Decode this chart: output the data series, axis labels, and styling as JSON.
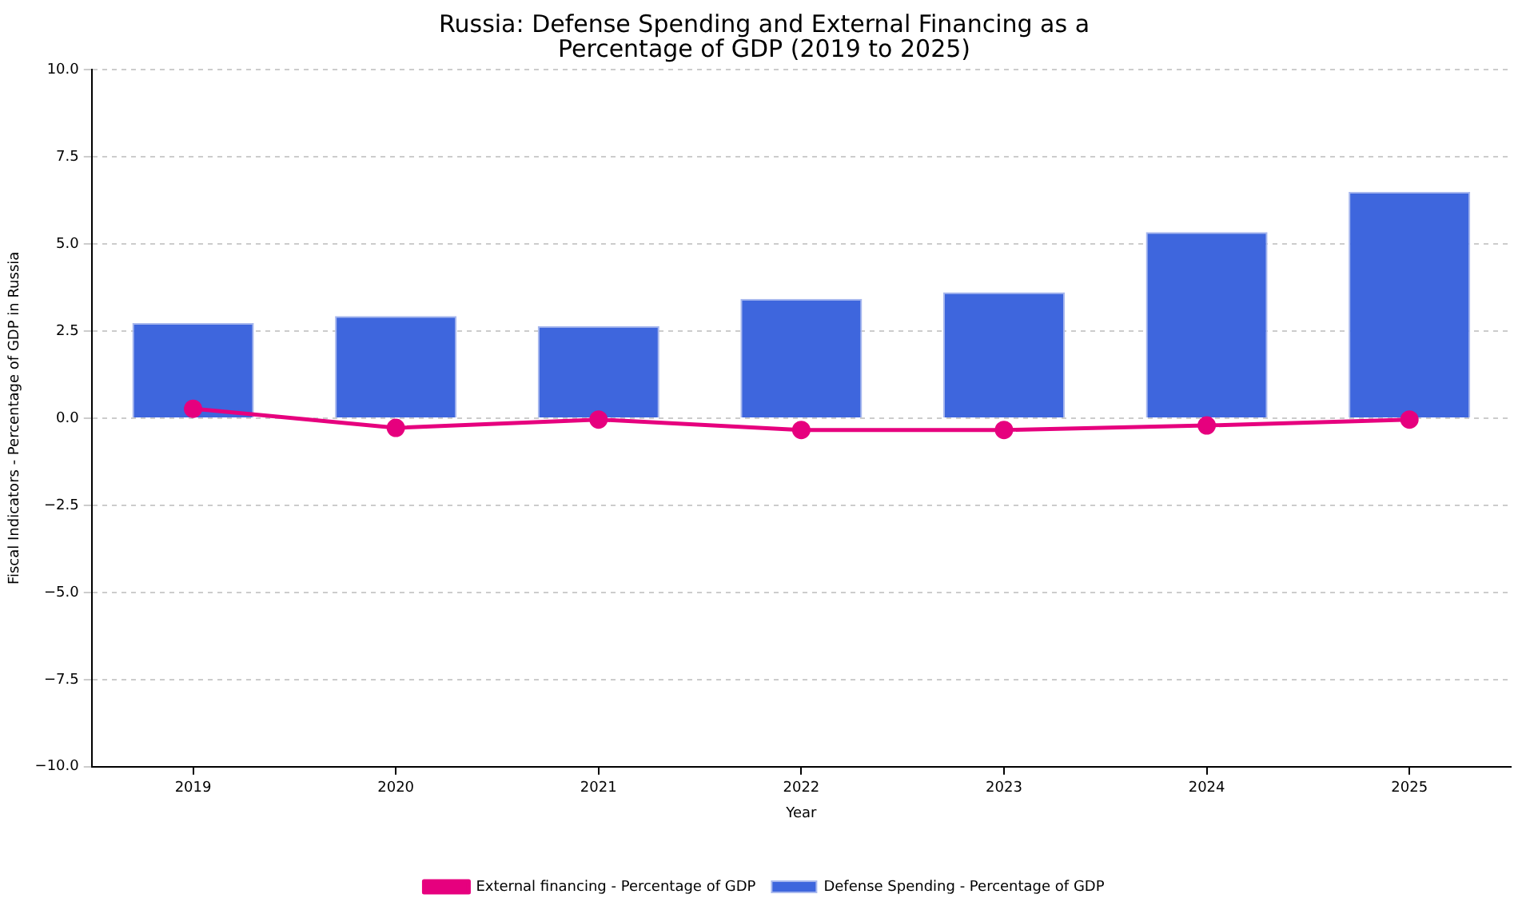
{
  "chart_data": {
    "type": "bar",
    "title": "Russia: Defense Spending and External Financing as a Percentage of GDP (2019 to 2025)",
    "xlabel": "Year",
    "ylabel": "Fiscal Indicators - Percentage of GDP in Russia",
    "categories": [
      "2019",
      "2020",
      "2021",
      "2022",
      "2023",
      "2024",
      "2025"
    ],
    "series": [
      {
        "name": "External financing - Percentage of GDP",
        "type": "line",
        "color": "#e6007e",
        "values": [
          0.27,
          -0.28,
          -0.04,
          -0.34,
          -0.34,
          -0.21,
          -0.04
        ]
      },
      {
        "name": "Defense Spending - Percentage of GDP",
        "color": "#3e66dd",
        "values": [
          2.73,
          2.93,
          2.64,
          3.42,
          3.61,
          5.34,
          6.49
        ]
      }
    ],
    "ylim": [
      -10,
      10
    ],
    "yticks": [
      {
        "value": -10,
        "label": "−10.0"
      },
      {
        "value": -7.5,
        "label": "−7.5"
      },
      {
        "value": -5,
        "label": "−5.0"
      },
      {
        "value": -2.5,
        "label": "−2.5"
      },
      {
        "value": 0,
        "label": "0.0"
      },
      {
        "value": 2.5,
        "label": "2.5"
      },
      {
        "value": 5,
        "label": "5.0"
      },
      {
        "value": 7.5,
        "label": "7.5"
      },
      {
        "value": 10,
        "label": "10.0"
      }
    ],
    "grid": "y",
    "legend": "bottom",
    "marker": "circle",
    "line_style": "solid"
  }
}
